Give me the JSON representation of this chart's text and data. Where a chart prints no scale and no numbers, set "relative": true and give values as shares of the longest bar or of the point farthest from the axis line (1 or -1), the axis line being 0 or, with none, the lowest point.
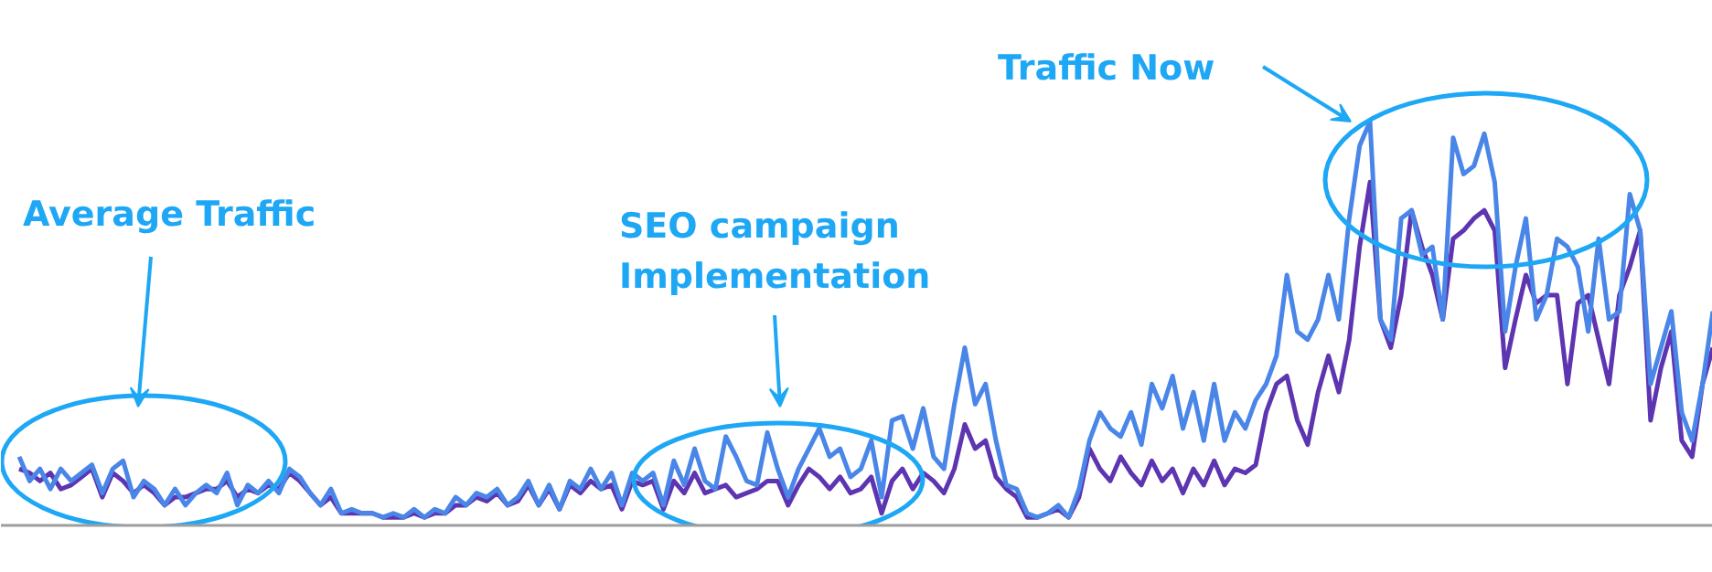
{
  "chart_data": {
    "type": "line",
    "relative": true,
    "grid": false,
    "categories": [
      null,
      null,
      null,
      null,
      null,
      null,
      null,
      null,
      null,
      null,
      null,
      null,
      null,
      null,
      null,
      null,
      null,
      null,
      null,
      null,
      null,
      null,
      null,
      null,
      null,
      null,
      null,
      null,
      null,
      null,
      null,
      null,
      null,
      null,
      null,
      null,
      null,
      null,
      null,
      null,
      null,
      null,
      null,
      null,
      null,
      null,
      null,
      null,
      null,
      null,
      null,
      null,
      null,
      null,
      null,
      null,
      null,
      null,
      null,
      null,
      null,
      null,
      null,
      null,
      null,
      null,
      null,
      null,
      null,
      null,
      null,
      null,
      null,
      null,
      null,
      null,
      null,
      null,
      null,
      null,
      null,
      null,
      null,
      null,
      null,
      null,
      null,
      null,
      null,
      null,
      null,
      null,
      null,
      null,
      null,
      null,
      null,
      null,
      null,
      null,
      null,
      null,
      null,
      null,
      null,
      null,
      null,
      null,
      null,
      null,
      null,
      null,
      null,
      null,
      null,
      null,
      null,
      null,
      null,
      null,
      null,
      null,
      null,
      null,
      null,
      null,
      null,
      null,
      null,
      null,
      null,
      null,
      null,
      null,
      null,
      null,
      null,
      null,
      null,
      null,
      null,
      null,
      null,
      null,
      null,
      null,
      null,
      null,
      null,
      null,
      null,
      null,
      null,
      null,
      null,
      null,
      null,
      null,
      null,
      null,
      null,
      null,
      null,
      null
    ],
    "series": [
      {
        "color": "#5e35b1",
        "values": [
          0.14,
          0.13,
          0.11,
          0.13,
          0.09,
          0.1,
          0.12,
          0.14,
          0.07,
          0.13,
          0.11,
          0.08,
          0.1,
          0.08,
          0.05,
          0.07,
          0.07,
          0.08,
          0.09,
          0.09,
          0.11,
          0.07,
          0.09,
          0.08,
          0.1,
          0.09,
          0.13,
          0.11,
          0.08,
          0.05,
          0.07,
          0.03,
          0.03,
          0.03,
          0.03,
          0.02,
          0.02,
          0.02,
          0.03,
          0.02,
          0.03,
          0.03,
          0.05,
          0.05,
          0.07,
          0.06,
          0.08,
          0.05,
          0.06,
          0.1,
          0.05,
          0.09,
          0.04,
          0.1,
          0.08,
          0.11,
          0.09,
          0.1,
          0.04,
          0.11,
          0.1,
          0.11,
          0.04,
          0.11,
          0.08,
          0.13,
          0.08,
          0.09,
          0.1,
          0.07,
          0.08,
          0.09,
          0.11,
          0.11,
          0.05,
          0.1,
          0.14,
          0.12,
          0.09,
          0.12,
          0.08,
          0.09,
          0.12,
          0.03,
          0.11,
          0.14,
          0.09,
          0.13,
          0.11,
          0.08,
          0.14,
          0.25,
          0.19,
          0.21,
          0.12,
          0.09,
          0.07,
          0.02,
          0.02,
          0.03,
          0.04,
          0.02,
          0.07,
          0.19,
          0.14,
          0.11,
          0.17,
          0.13,
          0.1,
          0.16,
          0.11,
          0.14,
          0.08,
          0.14,
          0.1,
          0.16,
          0.1,
          0.14,
          0.13,
          0.15,
          0.28,
          0.35,
          0.37,
          0.26,
          0.2,
          0.33,
          0.42,
          0.33,
          0.46,
          0.69,
          0.85,
          0.51,
          0.44,
          0.57,
          0.78,
          0.69,
          0.62,
          0.51,
          0.71,
          0.73,
          0.76,
          0.78,
          0.73,
          0.39,
          0.51,
          0.62,
          0.55,
          0.57,
          0.57,
          0.35,
          0.55,
          0.57,
          0.46,
          0.35,
          0.57,
          0.64,
          0.73,
          0.26,
          0.39,
          0.48,
          0.21,
          0.17,
          0.35,
          0.44
        ]
      },
      {
        "color": "#4a86e8",
        "values": [
          0.17,
          0.11,
          0.14,
          0.09,
          0.14,
          0.11,
          0.13,
          0.15,
          0.08,
          0.14,
          0.16,
          0.07,
          0.11,
          0.09,
          0.05,
          0.09,
          0.05,
          0.08,
          0.1,
          0.08,
          0.13,
          0.05,
          0.1,
          0.08,
          0.11,
          0.08,
          0.14,
          0.12,
          0.08,
          0.05,
          0.09,
          0.03,
          0.04,
          0.03,
          0.03,
          0.02,
          0.03,
          0.02,
          0.04,
          0.02,
          0.04,
          0.03,
          0.07,
          0.05,
          0.08,
          0.07,
          0.09,
          0.05,
          0.07,
          0.11,
          0.05,
          0.1,
          0.04,
          0.11,
          0.09,
          0.14,
          0.09,
          0.13,
          0.05,
          0.13,
          0.11,
          0.13,
          0.05,
          0.16,
          0.1,
          0.19,
          0.11,
          0.09,
          0.22,
          0.17,
          0.11,
          0.1,
          0.23,
          0.14,
          0.07,
          0.14,
          0.19,
          0.24,
          0.17,
          0.19,
          0.12,
          0.14,
          0.21,
          0.07,
          0.26,
          0.27,
          0.19,
          0.29,
          0.17,
          0.14,
          0.3,
          0.44,
          0.3,
          0.35,
          0.21,
          0.1,
          0.09,
          0.03,
          0.02,
          0.03,
          0.05,
          0.02,
          0.09,
          0.21,
          0.28,
          0.24,
          0.22,
          0.28,
          0.2,
          0.35,
          0.29,
          0.37,
          0.24,
          0.33,
          0.21,
          0.35,
          0.21,
          0.28,
          0.24,
          0.31,
          0.35,
          0.42,
          0.62,
          0.48,
          0.46,
          0.51,
          0.62,
          0.51,
          0.76,
          0.94,
          1,
          0.51,
          0.46,
          0.76,
          0.78,
          0.67,
          0.69,
          0.51,
          0.96,
          0.87,
          0.89,
          0.97,
          0.85,
          0.48,
          0.64,
          0.76,
          0.51,
          0.57,
          0.71,
          0.69,
          0.64,
          0.48,
          0.71,
          0.51,
          0.53,
          0.82,
          0.73,
          0.35,
          0.44,
          0.53,
          0.28,
          0.21,
          0.35,
          0.53
        ]
      }
    ],
    "annotations": [
      "Average Traffic",
      "SEO campaign\nImplementation",
      "Traffic Now"
    ]
  }
}
